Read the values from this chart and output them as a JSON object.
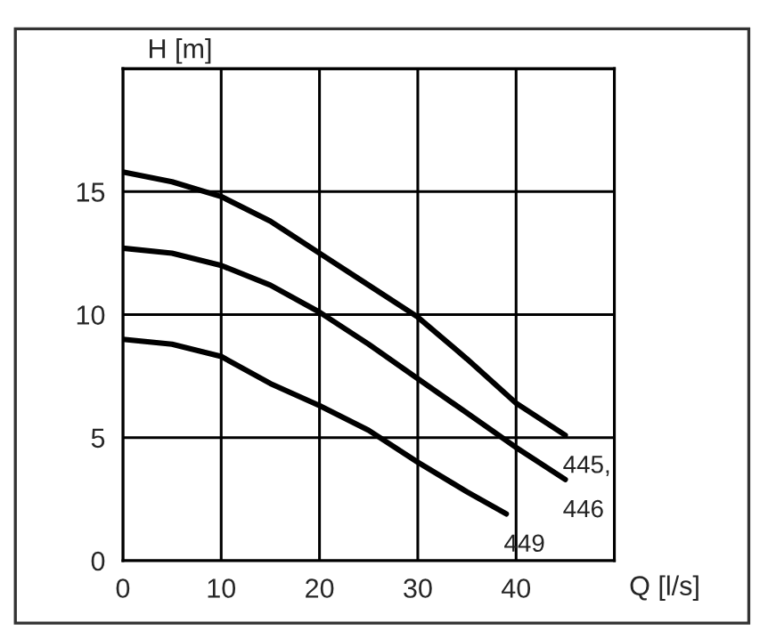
{
  "chart_data": {
    "type": "line",
    "xlabel": "Q [l/s]",
    "ylabel": "H [m]",
    "xlim": [
      0,
      50
    ],
    "ylim": [
      0,
      20
    ],
    "xticks": [
      0,
      10,
      20,
      30,
      40,
      {
        "value": 50,
        "label": null
      }
    ],
    "yticks": [
      0,
      5,
      10,
      15,
      {
        "value": 20,
        "label": null
      }
    ],
    "grid": true,
    "legend": false,
    "marker": "none",
    "line_style": "solid",
    "series": [
      {
        "name": "445,",
        "color": "#000000",
        "x": [
          0,
          5,
          10,
          15,
          20,
          25,
          30,
          35,
          40,
          45
        ],
        "values": [
          15.8,
          15.4,
          14.8,
          13.8,
          12.5,
          11.2,
          9.9,
          8.2,
          6.4,
          5.1
        ]
      },
      {
        "name": "446",
        "color": "#000000",
        "x": [
          0,
          5,
          10,
          15,
          20,
          25,
          30,
          35,
          40,
          45
        ],
        "values": [
          12.7,
          12.5,
          12.0,
          11.2,
          10.1,
          8.8,
          7.4,
          6.0,
          4.6,
          3.3
        ]
      },
      {
        "name": "449",
        "color": "#000000",
        "x": [
          0,
          5,
          10,
          15,
          20,
          25,
          30,
          35,
          39
        ],
        "values": [
          9.0,
          8.8,
          8.3,
          7.2,
          6.3,
          5.3,
          4.0,
          2.8,
          1.9
        ]
      }
    ]
  }
}
